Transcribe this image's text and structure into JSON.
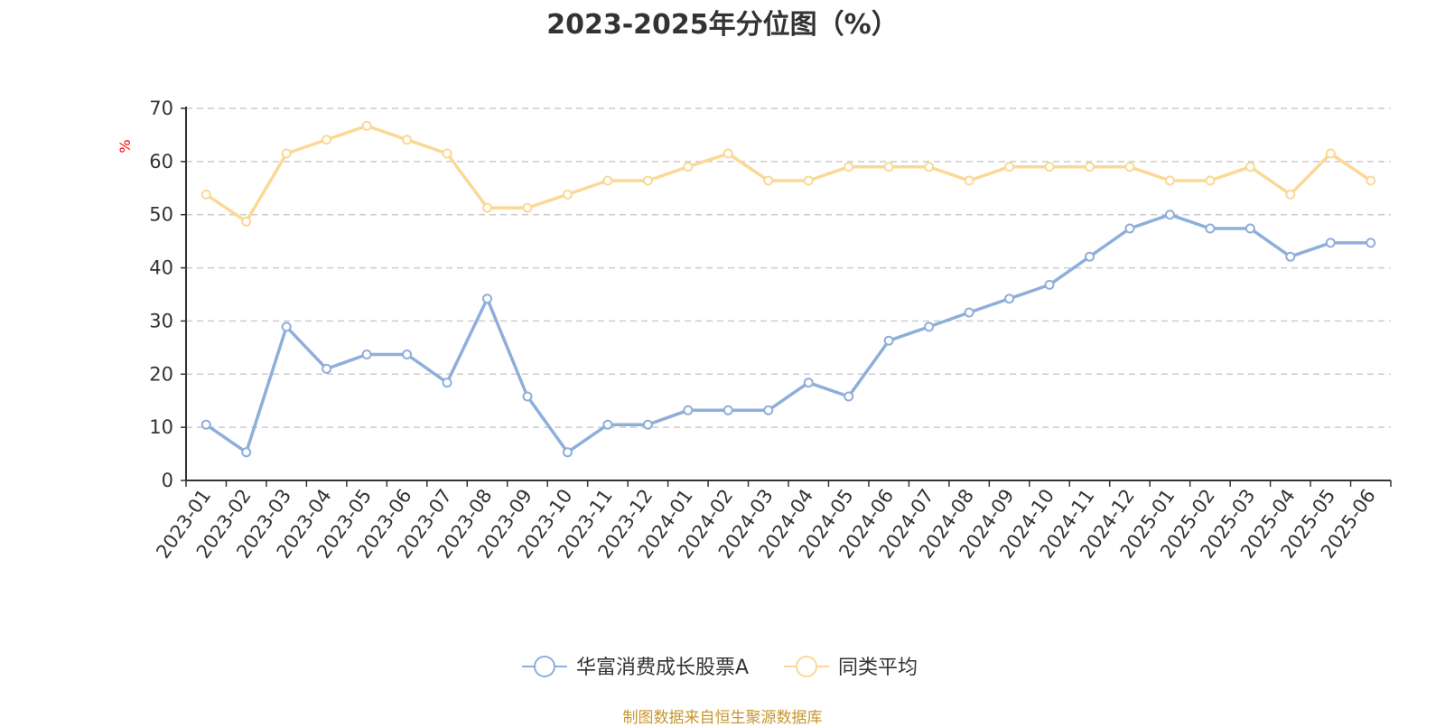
{
  "chart_data": {
    "type": "line",
    "title": "2023-2025年分位图（%）",
    "ylabel": "%",
    "xlabel": "",
    "ylim": [
      0,
      70
    ],
    "yticks": [
      0,
      10,
      20,
      30,
      40,
      50,
      60,
      70
    ],
    "grid": true,
    "legend_position": "bottom-center",
    "categories": [
      "2023-01",
      "2023-02",
      "2023-03",
      "2023-04",
      "2023-05",
      "2023-06",
      "2023-07",
      "2023-08",
      "2023-09",
      "2023-10",
      "2023-11",
      "2023-12",
      "2024-01",
      "2024-02",
      "2024-03",
      "2024-04",
      "2024-05",
      "2024-06",
      "2024-07",
      "2024-08",
      "2024-09",
      "2024-10",
      "2024-11",
      "2024-12",
      "2025-01",
      "2025-02",
      "2025-03",
      "2025-04",
      "2025-05",
      "2025-06"
    ],
    "series": [
      {
        "name": "华富消费成长股票A",
        "color": "#8eaedb",
        "values": [
          10.5,
          5.3,
          28.9,
          21.0,
          23.7,
          23.7,
          18.4,
          34.2,
          15.8,
          5.3,
          10.5,
          10.5,
          13.2,
          13.2,
          13.2,
          18.4,
          15.8,
          26.3,
          28.9,
          31.6,
          34.2,
          36.8,
          42.1,
          47.4,
          50.0,
          47.4,
          47.4,
          42.1,
          44.7,
          44.7
        ]
      },
      {
        "name": "同类平均",
        "color": "#fbd896",
        "values": [
          53.8,
          48.7,
          61.5,
          64.1,
          66.7,
          64.1,
          61.5,
          51.3,
          51.3,
          53.8,
          56.4,
          56.4,
          59.0,
          61.5,
          56.4,
          56.4,
          59.0,
          59.0,
          59.0,
          56.4,
          59.0,
          59.0,
          59.0,
          59.0,
          56.4,
          56.4,
          59.0,
          53.8,
          61.5,
          56.4
        ]
      }
    ]
  },
  "footer": {
    "source": "制图数据来自恒生聚源数据库"
  }
}
